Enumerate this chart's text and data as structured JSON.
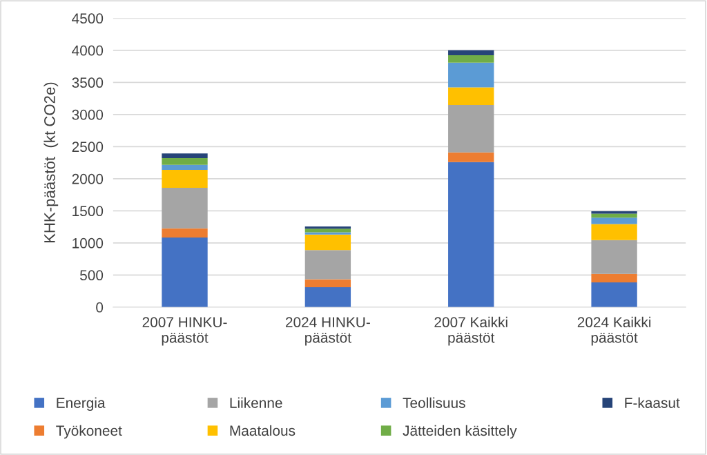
{
  "chart_data": {
    "type": "bar",
    "stacked": true,
    "ylabel": "KHK-päästöt  (kt CO2e)",
    "categories": [
      "2007 HINKU-\npäästöt",
      "2024 HINKU-\npäästöt",
      "2007 Kaikki\npäästöt",
      "2024 Kaikki\npäästöt"
    ],
    "series": [
      {
        "name": "Energia",
        "color": "#4472c4",
        "values": [
          1085,
          309,
          2260,
          385
        ]
      },
      {
        "name": "Työkoneet",
        "color": "#ed7d31",
        "values": [
          142,
          125,
          149,
          131
        ]
      },
      {
        "name": "Liikenne",
        "color": "#a5a5a5",
        "values": [
          631,
          455,
          739,
          528
        ]
      },
      {
        "name": "Maatalous",
        "color": "#ffc000",
        "values": [
          281,
          240,
          276,
          251
        ]
      },
      {
        "name": "Teollisuus",
        "color": "#5b9bd5",
        "values": [
          76,
          37,
          383,
          98
        ]
      },
      {
        "name": "Jätteiden käsittely",
        "color": "#70ad47",
        "values": [
          105,
          55,
          117,
          62
        ]
      },
      {
        "name": "F-kaasut",
        "color": "#264478",
        "values": [
          73,
          36,
          76,
          37
        ]
      }
    ],
    "ylim": [
      0,
      4500
    ],
    "yticks": [
      0,
      500,
      1000,
      1500,
      2000,
      2500,
      3000,
      3500,
      4000,
      4500
    ],
    "grid": "y",
    "legend": "bottom"
  }
}
